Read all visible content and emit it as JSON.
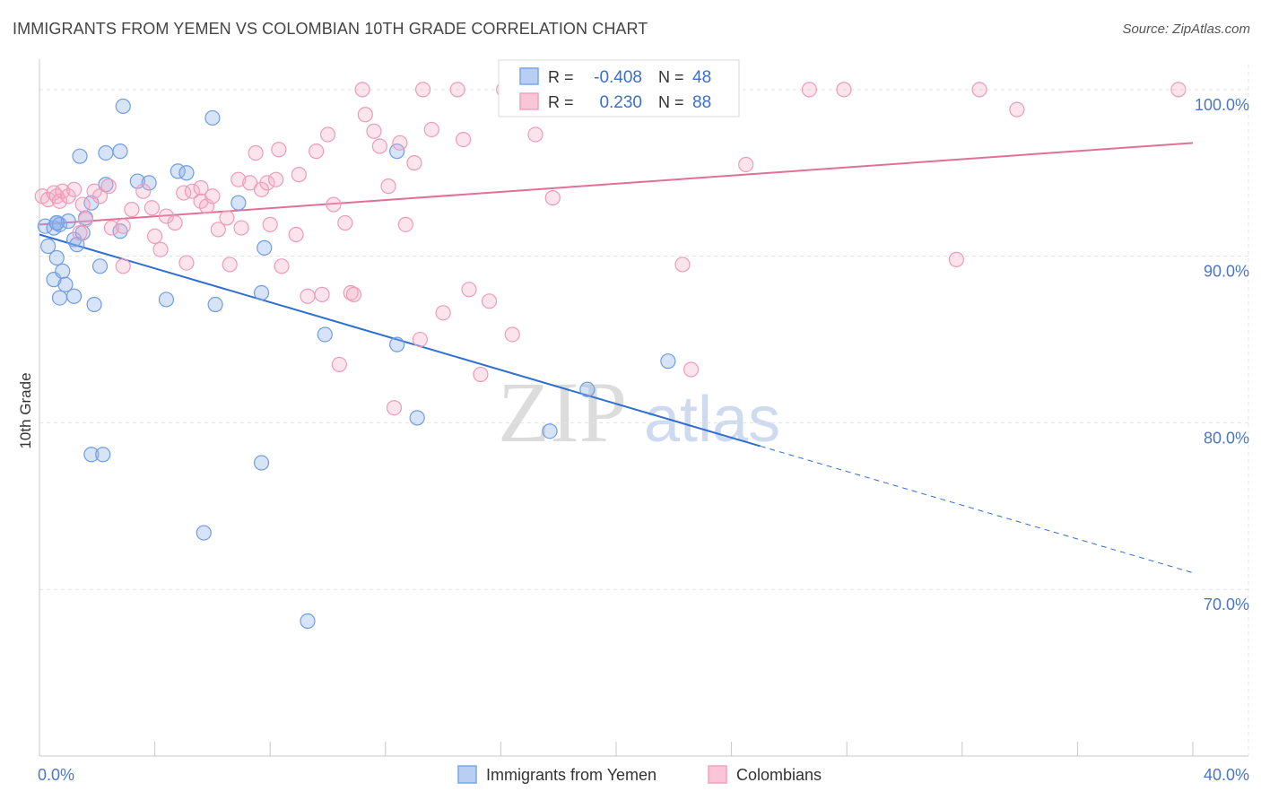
{
  "header": {
    "title": "IMMIGRANTS FROM YEMEN VS COLOMBIAN 10TH GRADE CORRELATION CHART",
    "source": "Source: ZipAtlas.com"
  },
  "watermark": {
    "zip": "ZIP",
    "atlas": "atlas"
  },
  "colors": {
    "blue": "#7aa6e8",
    "blue_line": "#2f6fd0",
    "pink": "#f2a0bc",
    "pink_line": "#e07098",
    "tick_text": "#4a76c8",
    "grid": "#e3e3e3"
  },
  "chart_data": {
    "type": "scatter",
    "title": "IMMIGRANTS FROM YEMEN VS COLOMBIAN 10TH GRADE CORRELATION CHART",
    "xlabel": "",
    "ylabel": "10th Grade",
    "xlim": [
      0,
      40
    ],
    "ylim": [
      60,
      101.5
    ],
    "x_ticks": [
      {
        "value": 0,
        "label": "0.0%"
      },
      {
        "value": 40,
        "label": "40.0%"
      }
    ],
    "y_ticks": [
      {
        "value": 100,
        "label": "100.0%"
      },
      {
        "value": 90,
        "label": "90.0%"
      },
      {
        "value": 80,
        "label": "80.0%"
      },
      {
        "value": 70,
        "label": "70.0%"
      }
    ],
    "legend": {
      "position": "top-center",
      "entries": [
        {
          "series": "Immigrants from Yemen",
          "r_label": "R =",
          "r": "-0.408",
          "n_label": "N =",
          "n": "48"
        },
        {
          "series": "Colombians",
          "r_label": "R =",
          "r": "0.230",
          "n_label": "N =",
          "n": "88"
        }
      ]
    },
    "series": [
      {
        "name": "Immigrants from Yemen",
        "color": "#7aa6e8",
        "trend": {
          "x0": 0,
          "y0": 91.3,
          "x1": 25,
          "y1": 78.6,
          "dashed_to_x": 40,
          "dashed_to_y": 71.0
        },
        "points": [
          [
            0.2,
            91.8
          ],
          [
            0.3,
            90.6
          ],
          [
            0.5,
            91.7
          ],
          [
            0.6,
            92.0
          ],
          [
            0.5,
            88.6
          ],
          [
            0.6,
            89.9
          ],
          [
            0.7,
            87.5
          ],
          [
            0.8,
            89.1
          ],
          [
            0.9,
            88.3
          ],
          [
            0.7,
            91.9
          ],
          [
            1.0,
            92.1
          ],
          [
            1.2,
            91.0
          ],
          [
            1.3,
            90.7
          ],
          [
            1.5,
            91.4
          ],
          [
            1.2,
            87.6
          ],
          [
            1.4,
            96.0
          ],
          [
            1.6,
            92.3
          ],
          [
            1.8,
            93.2
          ],
          [
            1.9,
            87.1
          ],
          [
            2.1,
            89.4
          ],
          [
            2.3,
            94.3
          ],
          [
            2.3,
            96.2
          ],
          [
            2.8,
            96.3
          ],
          [
            2.9,
            99.0
          ],
          [
            2.8,
            91.5
          ],
          [
            3.4,
            94.5
          ],
          [
            3.8,
            94.4
          ],
          [
            4.4,
            87.4
          ],
          [
            4.8,
            95.1
          ],
          [
            5.1,
            95.0
          ],
          [
            6.0,
            98.3
          ],
          [
            6.1,
            87.1
          ],
          [
            6.9,
            93.2
          ],
          [
            7.8,
            90.5
          ],
          [
            7.7,
            87.8
          ],
          [
            9.9,
            85.3
          ],
          [
            12.4,
            96.3
          ],
          [
            12.4,
            84.7
          ],
          [
            13.1,
            80.3
          ],
          [
            17.7,
            79.5
          ],
          [
            19.0,
            82.0
          ],
          [
            21.8,
            83.7
          ],
          [
            1.8,
            78.1
          ],
          [
            2.2,
            78.1
          ],
          [
            7.7,
            77.6
          ],
          [
            5.7,
            73.4
          ],
          [
            9.3,
            68.1
          ],
          [
            0.6,
            92.0
          ]
        ]
      },
      {
        "name": "Colombians",
        "color": "#f2a0bc",
        "trend": {
          "x0": 0,
          "y0": 91.9,
          "x1": 40,
          "y1": 96.8
        },
        "points": [
          [
            0.1,
            93.6
          ],
          [
            0.3,
            93.4
          ],
          [
            0.5,
            93.8
          ],
          [
            0.6,
            93.6
          ],
          [
            0.7,
            93.3
          ],
          [
            0.8,
            93.9
          ],
          [
            1.0,
            93.6
          ],
          [
            1.2,
            94.0
          ],
          [
            1.4,
            91.4
          ],
          [
            1.5,
            93.1
          ],
          [
            1.6,
            92.2
          ],
          [
            1.9,
            93.9
          ],
          [
            2.1,
            93.6
          ],
          [
            2.4,
            94.2
          ],
          [
            2.5,
            91.7
          ],
          [
            2.9,
            91.8
          ],
          [
            2.9,
            89.4
          ],
          [
            3.2,
            92.8
          ],
          [
            3.6,
            93.9
          ],
          [
            3.9,
            92.9
          ],
          [
            4.0,
            91.2
          ],
          [
            4.2,
            90.4
          ],
          [
            4.4,
            92.4
          ],
          [
            4.7,
            92.0
          ],
          [
            5.0,
            93.8
          ],
          [
            5.1,
            89.6
          ],
          [
            5.3,
            93.9
          ],
          [
            5.6,
            94.1
          ],
          [
            5.6,
            93.3
          ],
          [
            5.8,
            93.0
          ],
          [
            6.0,
            93.6
          ],
          [
            6.2,
            91.6
          ],
          [
            6.5,
            92.3
          ],
          [
            6.6,
            89.5
          ],
          [
            6.9,
            94.6
          ],
          [
            7.0,
            91.7
          ],
          [
            7.3,
            94.4
          ],
          [
            7.5,
            96.2
          ],
          [
            7.7,
            94.0
          ],
          [
            7.9,
            94.4
          ],
          [
            8.0,
            91.9
          ],
          [
            8.2,
            94.6
          ],
          [
            8.3,
            96.4
          ],
          [
            8.4,
            89.4
          ],
          [
            8.9,
            91.3
          ],
          [
            9.0,
            94.9
          ],
          [
            9.3,
            87.6
          ],
          [
            9.6,
            96.3
          ],
          [
            9.8,
            87.7
          ],
          [
            10.0,
            97.3
          ],
          [
            10.2,
            93.1
          ],
          [
            10.4,
            83.5
          ],
          [
            10.6,
            92.0
          ],
          [
            10.8,
            87.8
          ],
          [
            10.9,
            87.7
          ],
          [
            11.2,
            100.0
          ],
          [
            11.3,
            98.5
          ],
          [
            11.6,
            97.5
          ],
          [
            11.8,
            96.6
          ],
          [
            12.1,
            94.2
          ],
          [
            12.3,
            80.9
          ],
          [
            12.5,
            96.8
          ],
          [
            12.7,
            91.9
          ],
          [
            13.0,
            95.6
          ],
          [
            13.2,
            85.0
          ],
          [
            13.3,
            100.0
          ],
          [
            13.6,
            97.6
          ],
          [
            14.0,
            86.6
          ],
          [
            14.5,
            100.0
          ],
          [
            14.7,
            97.0
          ],
          [
            14.9,
            88.0
          ],
          [
            15.3,
            82.9
          ],
          [
            15.6,
            87.3
          ],
          [
            16.1,
            100.0
          ],
          [
            16.4,
            85.3
          ],
          [
            17.2,
            97.3
          ],
          [
            17.8,
            93.5
          ],
          [
            19.6,
            100.0
          ],
          [
            22.3,
            89.5
          ],
          [
            22.6,
            83.2
          ],
          [
            24.0,
            100.0
          ],
          [
            24.5,
            95.5
          ],
          [
            26.7,
            100.0
          ],
          [
            27.9,
            100.0
          ],
          [
            31.8,
            89.8
          ],
          [
            32.6,
            100.0
          ],
          [
            33.9,
            98.8
          ],
          [
            39.5,
            100.0
          ]
        ]
      }
    ]
  }
}
